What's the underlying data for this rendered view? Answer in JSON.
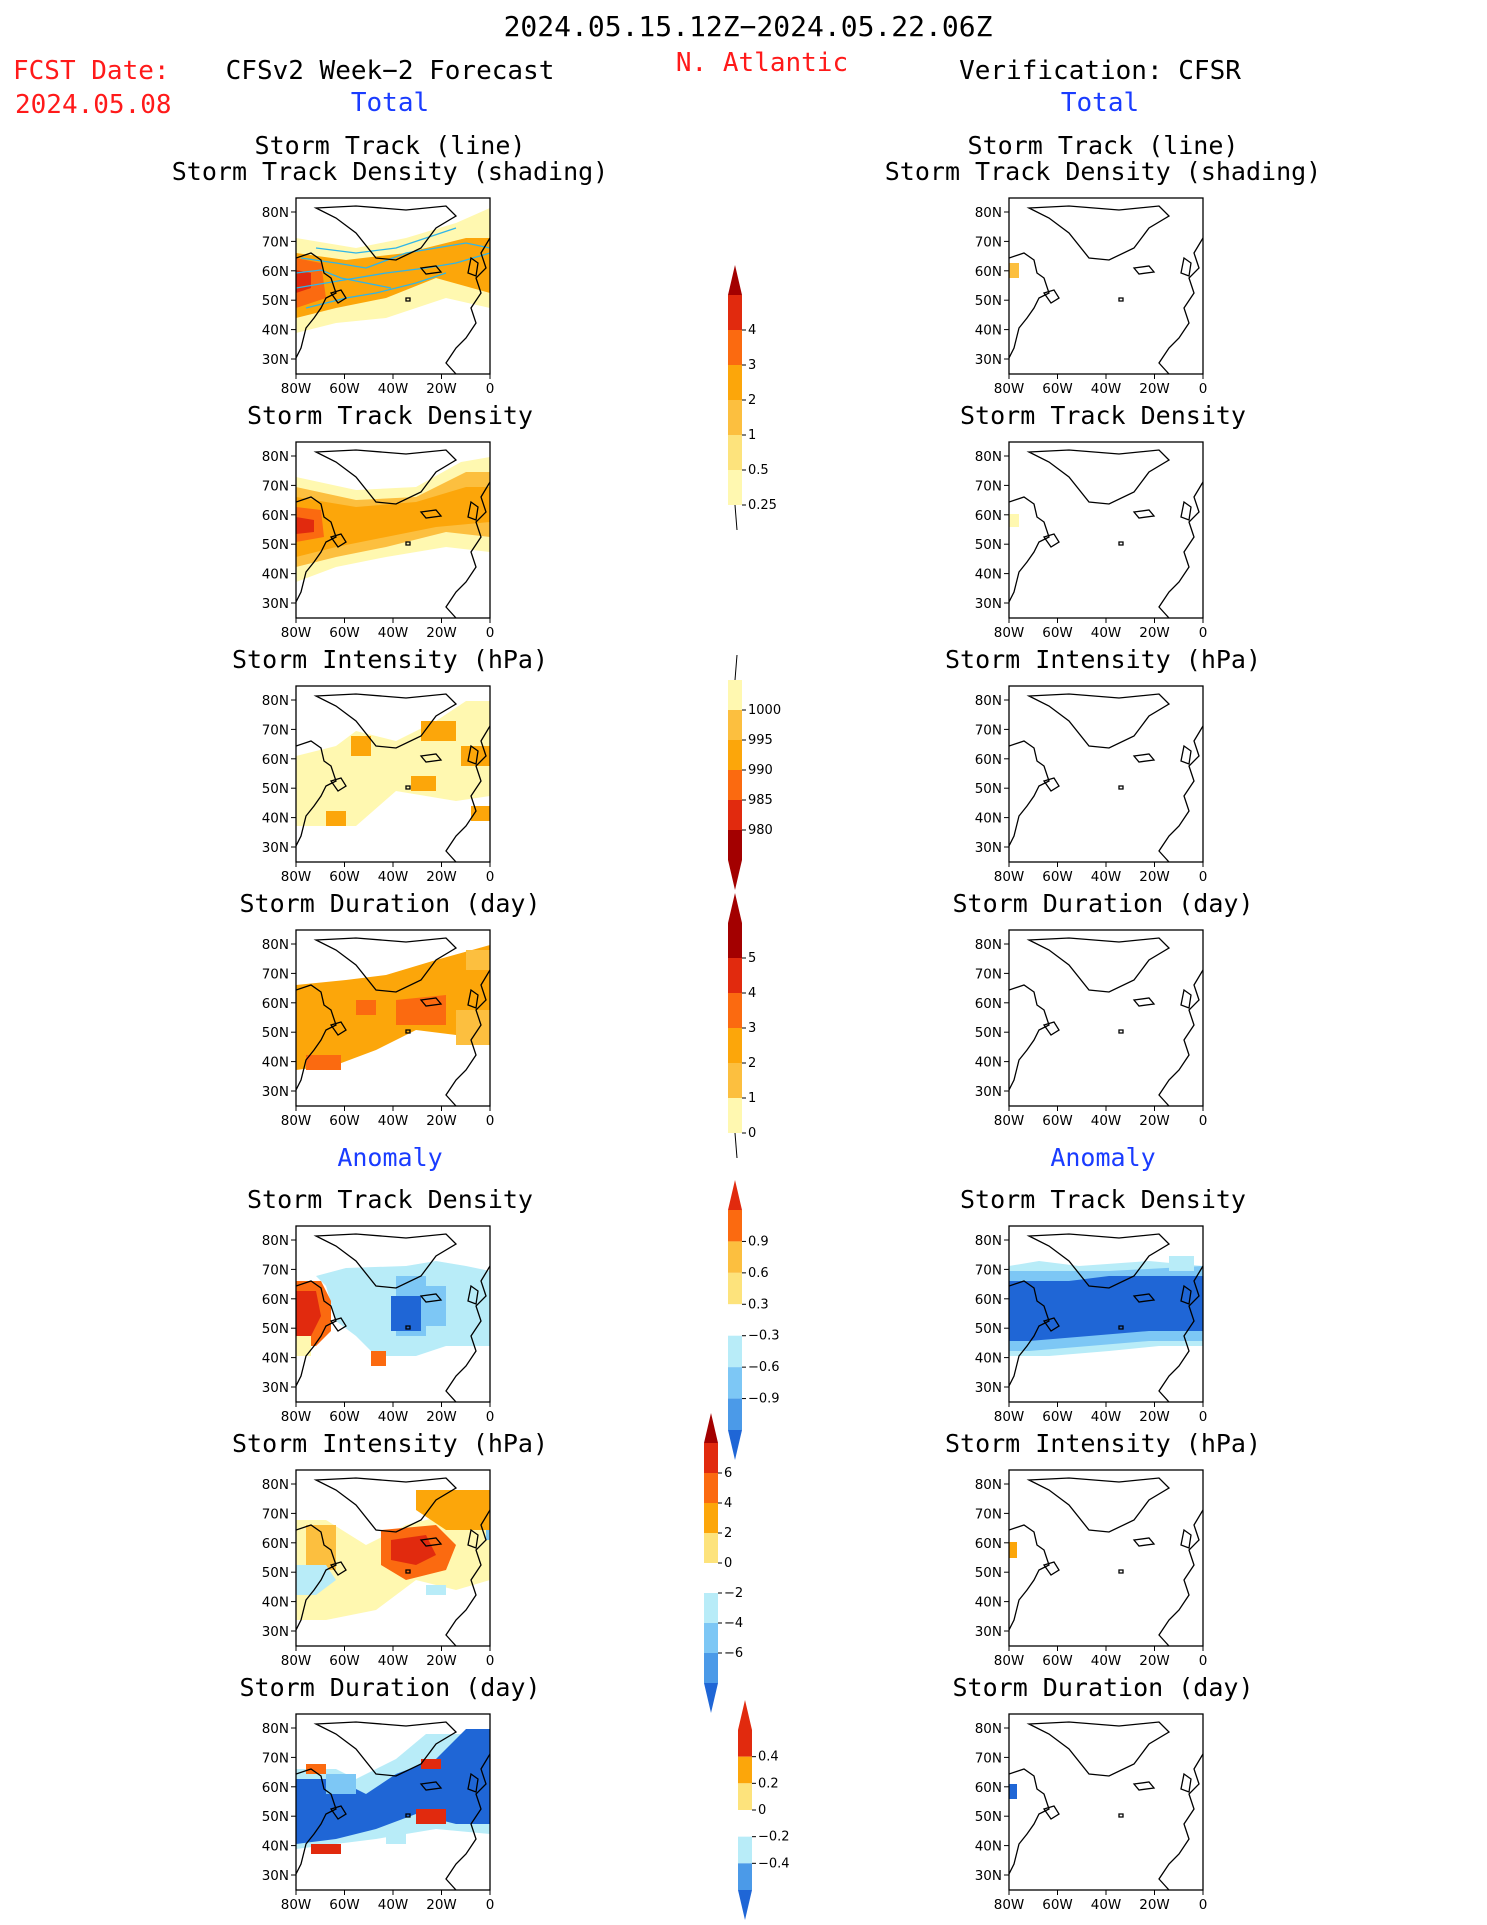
{
  "header": {
    "period": "2024.05.15.12Z−2024.05.22.06Z",
    "fcst_label": "FCST Date:",
    "fcst_date": "2024.05.08",
    "forecast_title": "CFSv2 Week−2 Forecast",
    "region": "N. Atlantic",
    "verification_title": "Verification: CFSR",
    "total_left": "Total",
    "total_right": "Total",
    "anomaly_left": "Anomaly",
    "anomaly_right": "Anomaly"
  },
  "panel_titles": {
    "track_line": "Storm Track (line)",
    "track_shading": "Storm Track Density (shading)",
    "density": "Storm Track Density",
    "intensity": "Storm Intensity (hPa)",
    "duration": "Storm Duration (day)"
  },
  "axes": {
    "lat_labels": [
      "80N",
      "70N",
      "60N",
      "50N",
      "40N",
      "30N"
    ],
    "lon_labels": [
      "80W",
      "60W",
      "40W",
      "20W",
      "0"
    ]
  },
  "colors": {
    "light_yellow": "#fff8b0",
    "yellow": "#fde37c",
    "light_orange": "#fcbf3f",
    "orange": "#fca60a",
    "dark_orange": "#fb6a10",
    "red": "#e12a0e",
    "dark_red": "#a30000",
    "light_blue": "#b8ecf8",
    "mid_blue": "#7dc7f5",
    "blue": "#4b9ae8",
    "dark_blue": "#1f66d6",
    "track_line": "#2fb5e8"
  },
  "chart_data": [
    {
      "type": "heatmap",
      "panel": "forecast total storm track + density",
      "note": "shading over N. Atlantic with track lines"
    },
    {
      "type": "heatmap",
      "panel": "forecast total storm track density",
      "colorbar": {
        "levels": [
          "0.25",
          "0.5",
          "1",
          "2",
          "3",
          "4"
        ]
      }
    },
    {
      "type": "heatmap",
      "panel": "forecast total storm intensity",
      "colorbar": {
        "levels": [
          "1000",
          "995",
          "990",
          "985",
          "980"
        ]
      }
    },
    {
      "type": "heatmap",
      "panel": "forecast total storm duration",
      "colorbar": {
        "levels": [
          "0",
          "1",
          "2",
          "3",
          "4",
          "5"
        ]
      }
    },
    {
      "type": "heatmap",
      "panel": "forecast anomaly storm track density",
      "colorbar": {
        "levels": [
          "0.9",
          "0.6",
          "0.3",
          "−0.3",
          "−0.6",
          "−0.9"
        ]
      }
    },
    {
      "type": "heatmap",
      "panel": "forecast anomaly storm intensity",
      "colorbar": {
        "levels": [
          "6",
          "4",
          "2",
          "0",
          "−2",
          "−4",
          "−6"
        ]
      }
    },
    {
      "type": "heatmap",
      "panel": "forecast anomaly storm duration",
      "colorbar": {
        "levels": [
          "0.4",
          "0.2",
          "0",
          "−0.2",
          "−0.4"
        ]
      }
    }
  ]
}
